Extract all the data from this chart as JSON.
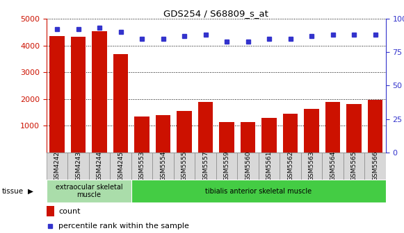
{
  "title": "GDS254 / S68809_s_at",
  "categories": [
    "GSM4242",
    "GSM4243",
    "GSM4244",
    "GSM4245",
    "GSM5553",
    "GSM5554",
    "GSM5555",
    "GSM5557",
    "GSM5559",
    "GSM5560",
    "GSM5561",
    "GSM5562",
    "GSM5563",
    "GSM5564",
    "GSM5565",
    "GSM5566"
  ],
  "counts": [
    4350,
    4330,
    4530,
    3680,
    1340,
    1400,
    1560,
    1900,
    1150,
    1150,
    1300,
    1450,
    1620,
    1900,
    1820,
    1960
  ],
  "percentiles": [
    92,
    92,
    93,
    90,
    85,
    85,
    87,
    88,
    83,
    83,
    85,
    85,
    87,
    88,
    88,
    88
  ],
  "bar_color": "#cc1100",
  "dot_color": "#3333cc",
  "left_axis_color": "#cc1100",
  "right_axis_color": "#3333cc",
  "ylim_left": [
    0,
    5000
  ],
  "ylim_right": [
    0,
    100
  ],
  "left_ticks": [
    1000,
    2000,
    3000,
    4000,
    5000
  ],
  "right_ticks": [
    0,
    25,
    50,
    75,
    100
  ],
  "right_tick_labels": [
    "0",
    "25",
    "50",
    "75",
    "100%"
  ],
  "tissue_groups": [
    {
      "label": "extraocular skeletal\nmuscle",
      "start": 0,
      "end": 4,
      "color": "#aaddaa"
    },
    {
      "label": "tibialis anterior skeletal muscle",
      "start": 4,
      "end": 16,
      "color": "#44cc44"
    }
  ],
  "tissue_label": "tissue",
  "legend_count_label": "count",
  "legend_percentile_label": "percentile rank within the sample",
  "background_color": "#ffffff",
  "plot_bg_color": "#ffffff",
  "cell_color": "#d8d8d8",
  "cell_border_color": "#888888"
}
